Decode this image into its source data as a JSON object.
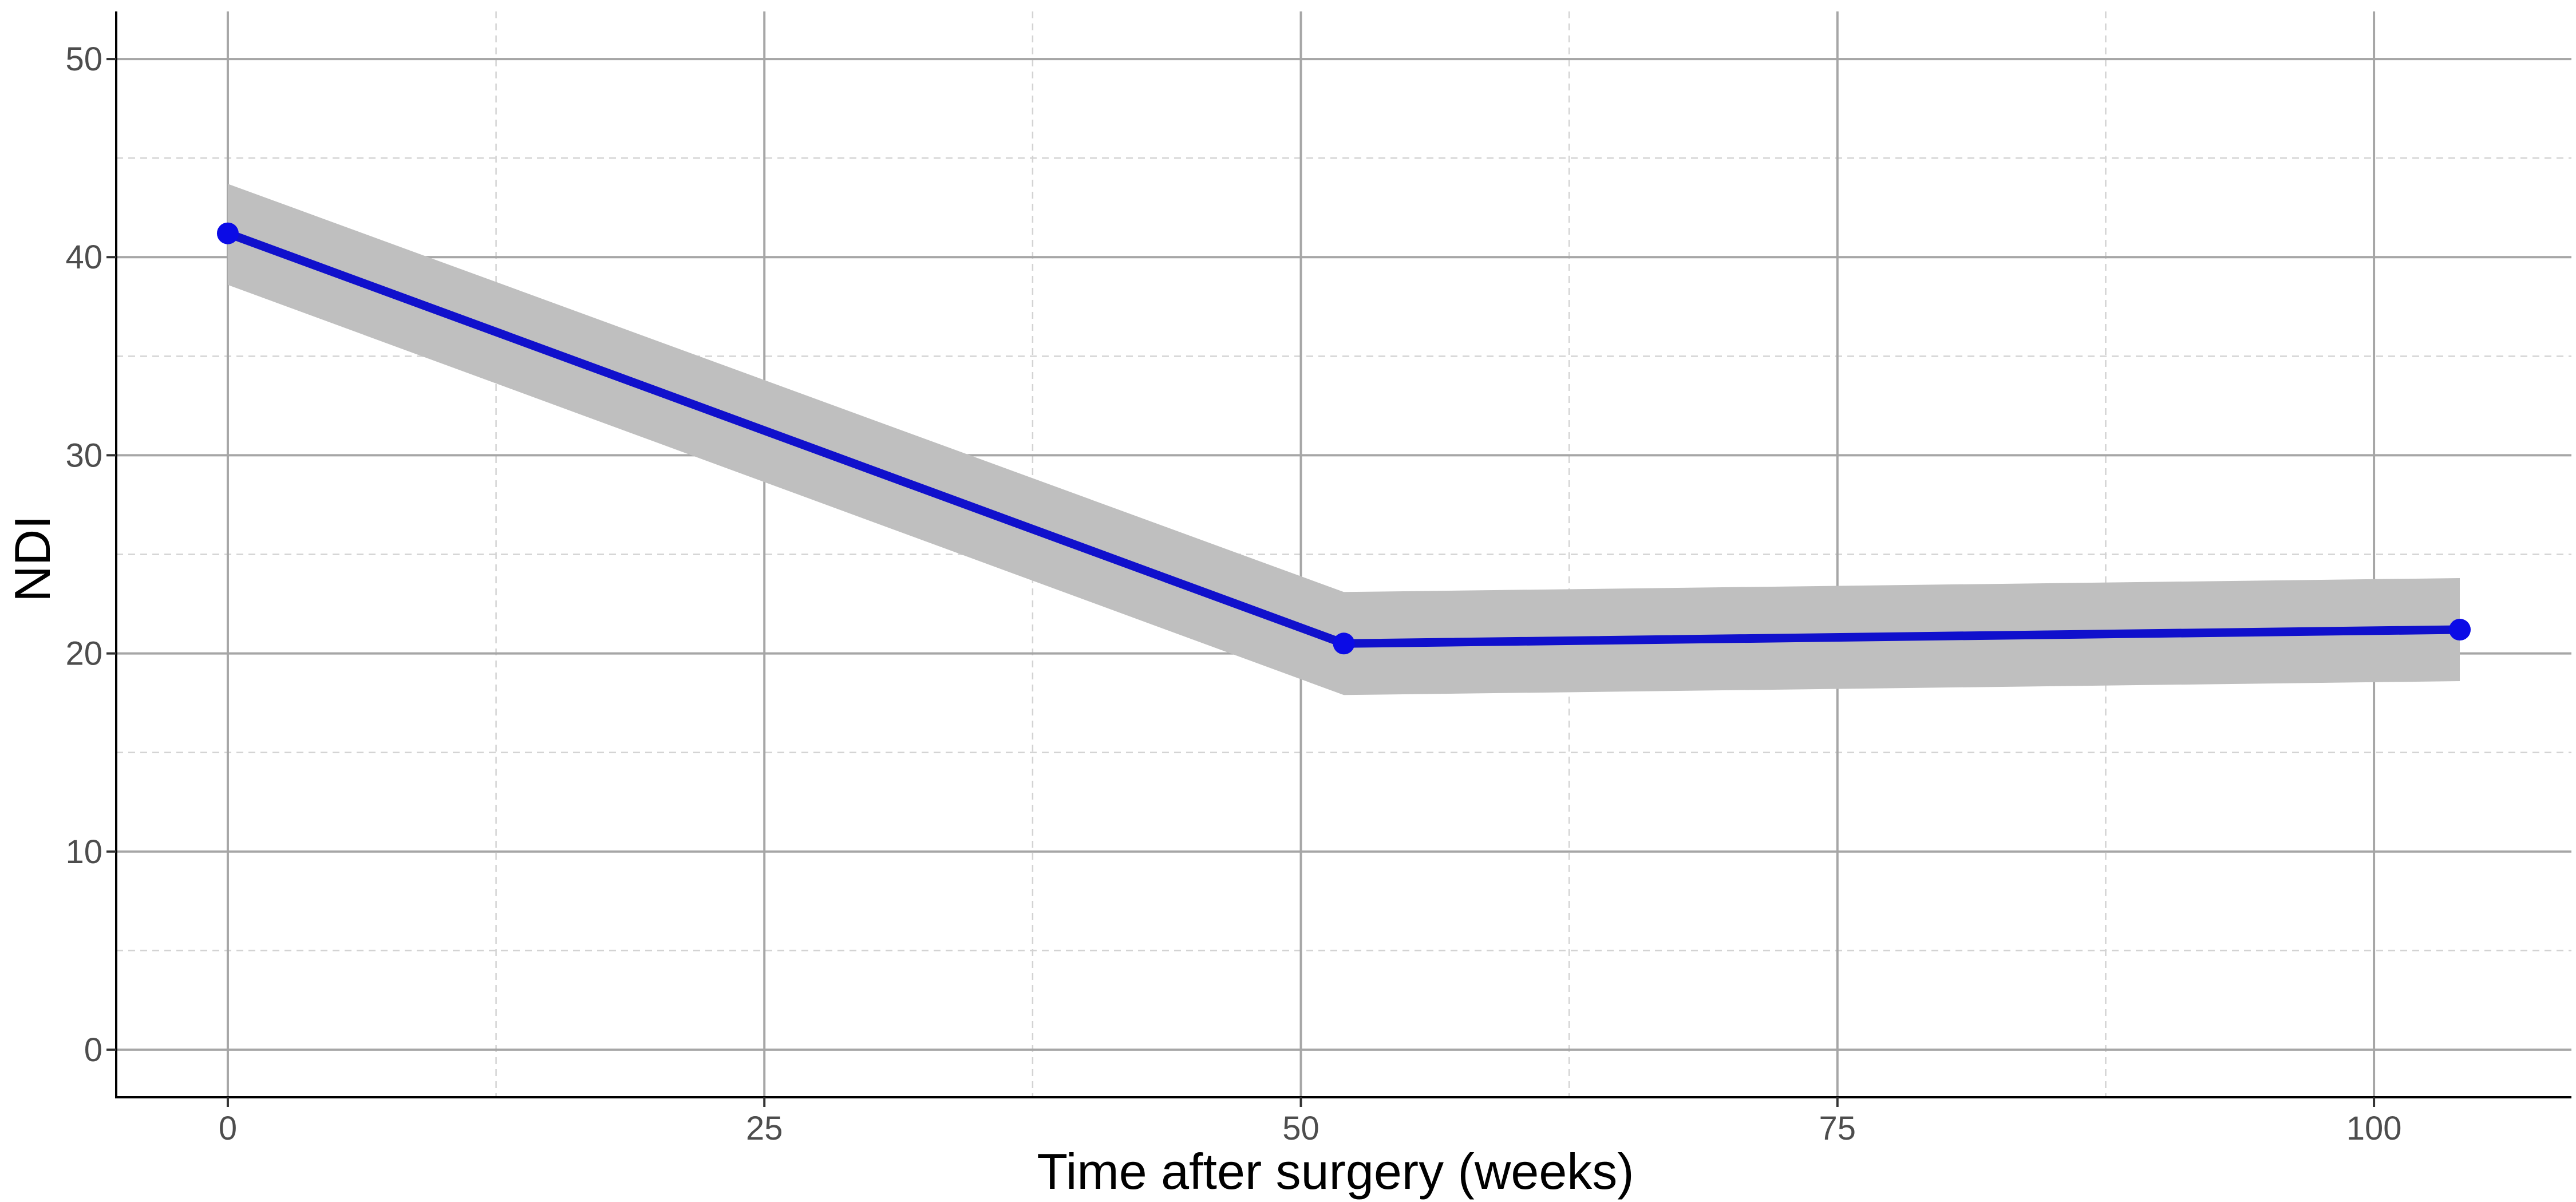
{
  "chart_data": {
    "type": "line",
    "title": "",
    "xlabel": "Time after surgery (weeks)",
    "ylabel": "NDI",
    "xlim": [
      -5.2,
      109.2
    ],
    "ylim": [
      -2.4,
      52.4
    ],
    "x_ticks": [
      0,
      25,
      50,
      75,
      100
    ],
    "y_ticks": [
      0,
      10,
      20,
      30,
      40,
      50
    ],
    "x_minor_ticks": [
      12.5,
      37.5,
      62.5,
      87.5
    ],
    "y_minor_ticks": [
      5,
      15,
      25,
      35,
      45
    ],
    "grid": true,
    "legend": "none",
    "series": [
      {
        "x": [
          0,
          52,
          104
        ],
        "y": [
          41.2,
          20.5,
          21.2
        ],
        "ci_lower": [
          38.6,
          17.9,
          18.6
        ],
        "ci_upper": [
          43.7,
          23.1,
          23.8
        ],
        "color": "#1010cc"
      }
    ],
    "colors": {
      "line": "#1010cc",
      "point": "#0b0be6",
      "ribbon": "#bfbfbf",
      "major_grid": "#a6a6a6",
      "minor_grid": "#d3d3d3",
      "axis": "#000000",
      "tick_text": "#4d4d4d"
    }
  }
}
